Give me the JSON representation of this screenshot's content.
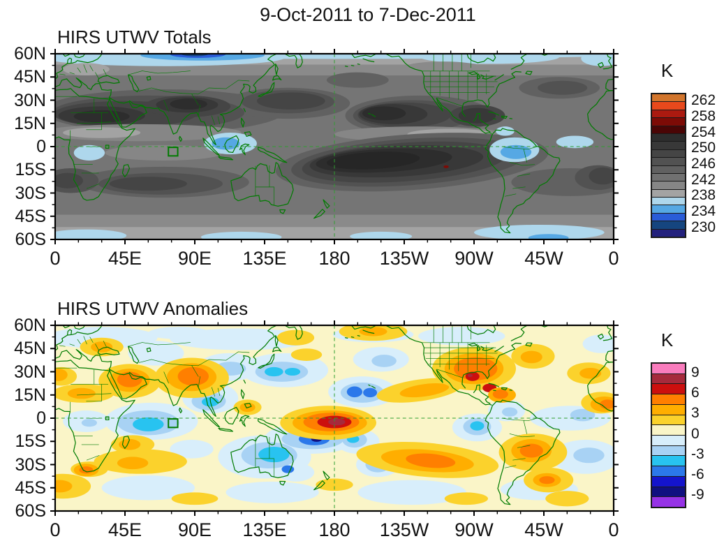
{
  "title": "9-Oct-2011 to 7-Dec-2011",
  "panels": [
    {
      "key": "totals",
      "title": "HIRS UTWV Totals"
    },
    {
      "key": "anomalies",
      "title": "HIRS UTWV Anomalies"
    }
  ],
  "axes": {
    "x_ticks": [
      {
        "label": "0",
        "lon": 0
      },
      {
        "label": "45E",
        "lon": 45
      },
      {
        "label": "90E",
        "lon": 90
      },
      {
        "label": "135E",
        "lon": 135
      },
      {
        "label": "180",
        "lon": 180
      },
      {
        "label": "135W",
        "lon": 225
      },
      {
        "label": "90W",
        "lon": 270
      },
      {
        "label": "45W",
        "lon": 315
      },
      {
        "label": "0",
        "lon": 360
      }
    ],
    "y_ticks": [
      {
        "label": "60N",
        "lat": 60
      },
      {
        "label": "45N",
        "lat": 45
      },
      {
        "label": "30N",
        "lat": 30
      },
      {
        "label": "15N",
        "lat": 15
      },
      {
        "label": "0",
        "lat": 0
      },
      {
        "label": "15S",
        "lat": -15
      },
      {
        "label": "30S",
        "lat": -30
      },
      {
        "label": "45S",
        "lat": -45
      },
      {
        "label": "60S",
        "lat": -60
      }
    ]
  },
  "colorbars": {
    "totals": {
      "units": "K",
      "tick_labels": [
        "262",
        "258",
        "254",
        "250",
        "246",
        "242",
        "238",
        "234",
        "230"
      ],
      "levels": [
        262,
        260,
        258,
        256,
        254,
        252,
        250,
        248,
        246,
        244,
        242,
        240,
        238,
        236,
        234,
        232,
        230
      ],
      "colors": [
        "#d2752c",
        "#e8491c",
        "#ab1a10",
        "#7d0b06",
        "#4a0505",
        "#2d2d2d",
        "#383838",
        "#454545",
        "#525252",
        "#616161",
        "#717171",
        "#868686",
        "#a3a3a3",
        "#aed7ec",
        "#56a8e4",
        "#2a5cd8",
        "#15457f",
        "#23217d"
      ]
    },
    "anomalies": {
      "units": "K",
      "tick_labels": [
        "9",
        "6",
        "3",
        "0",
        "-3",
        "-6",
        "-9"
      ],
      "levels": [
        9,
        7.5,
        6,
        4.5,
        3,
        1.5,
        0,
        -1.5,
        -3,
        -4.5,
        -6,
        -7.5,
        -9
      ],
      "colors": [
        "#f97cbd",
        "#a62a3c",
        "#cc0f0e",
        "#ff7f00",
        "#ffae00",
        "#fbd22c",
        "#faf5c8",
        "#d8eefb",
        "#a8d2f4",
        "#28c3f0",
        "#2b78ea",
        "#1414cc",
        "#101080",
        "#9633e6"
      ]
    }
  },
  "overlays": {
    "region_box": {
      "lon_min": 73,
      "lon_max": 79,
      "lat_min": -6,
      "lat_max": -0.5
    },
    "dashed_lines": [
      "equator",
      "dateline-180"
    ]
  },
  "chart_data": [
    {
      "type": "heatmap",
      "subtype": "filled-contour-map",
      "title": "HIRS UTWV Totals",
      "suptitle": "9-Oct-2011 to 7-Dec-2011",
      "units": "K",
      "projection": "equirectangular",
      "lon_range": [
        0,
        360
      ],
      "lat_range": [
        -60,
        60
      ],
      "x_tick_labels": [
        "0",
        "45E",
        "90E",
        "135E",
        "180",
        "135W",
        "90W",
        "45W",
        "0"
      ],
      "y_tick_labels": [
        "60N",
        "45N",
        "30N",
        "15N",
        "0",
        "15S",
        "30S",
        "45S",
        "60S"
      ],
      "contour_interval": 2,
      "contour_levels": [
        230,
        232,
        234,
        236,
        238,
        240,
        242,
        244,
        246,
        248,
        250,
        252,
        254,
        256,
        258,
        260,
        262
      ],
      "legend_position": "right",
      "features": [
        "cold band <238 K (light blue to navy) along 55-60N, deepest ~85-100E",
        "dark band 250-256 K across N-subtropics from W Africa through Arabia/India/SE Asia, core ~254-256 K over Sahara and over India/Tibet",
        "dark cell 250-254 K over NW Pacific east of Japan ~25-35N",
        "dark cell 252-256 K over NE Pacific/Mexico/Caribbean ~15-28N",
        "large dark tongue 252-258 K along 0-20S from 160E to 60W with tiny >258 K spot near 108W,13S",
        "moist (blue <238 K) pockets over Indonesia, Congo basin, NW South America/Amazon, equatorial Atlantic",
        "light-blue band <238 K along 55-60S, strongest 290-345E"
      ]
    },
    {
      "type": "heatmap",
      "subtype": "filled-contour-map",
      "title": "HIRS UTWV Anomalies",
      "units": "K",
      "projection": "equirectangular",
      "lon_range": [
        0,
        360
      ],
      "lat_range": [
        -60,
        60
      ],
      "x_tick_labels": [
        "0",
        "45E",
        "90E",
        "135E",
        "180",
        "135W",
        "90W",
        "45W",
        "0"
      ],
      "y_tick_labels": [
        "60N",
        "45N",
        "30N",
        "15N",
        "0",
        "15S",
        "30S",
        "45S",
        "60S"
      ],
      "contour_interval": 1.5,
      "contour_levels": [
        -9,
        -7.5,
        -6,
        -4.5,
        -3,
        -1.5,
        0,
        1.5,
        3,
        4.5,
        6,
        7.5,
        9
      ],
      "legend_position": "right",
      "features": [
        "strong positive anomaly +6 to +9 K centered on the dateline at 0-5S (dark red core)",
        "positive +3 to +6 K over Arabia and over India/Myanmar",
        "positive +4.5 to +7.5 K over Mexico/Gulf of Mexico/Caribbean with small >+7.5 K spots",
        "positive band +3 to +6 K across subtropical S Pacific ~20-35S and over Brazil",
        "negative -3 to -6 K over W Indian Ocean, Bay of Bengal, NW Pacific, central N Pacific ~10-25N",
        "negative -4.5 to -7.5 K SE of dateline ~10-17S (small <-7.5 K spot) and around Australia",
        "weak background -1.5 to +1.5 K (pale yellow / pale blue) elsewhere"
      ]
    }
  ]
}
